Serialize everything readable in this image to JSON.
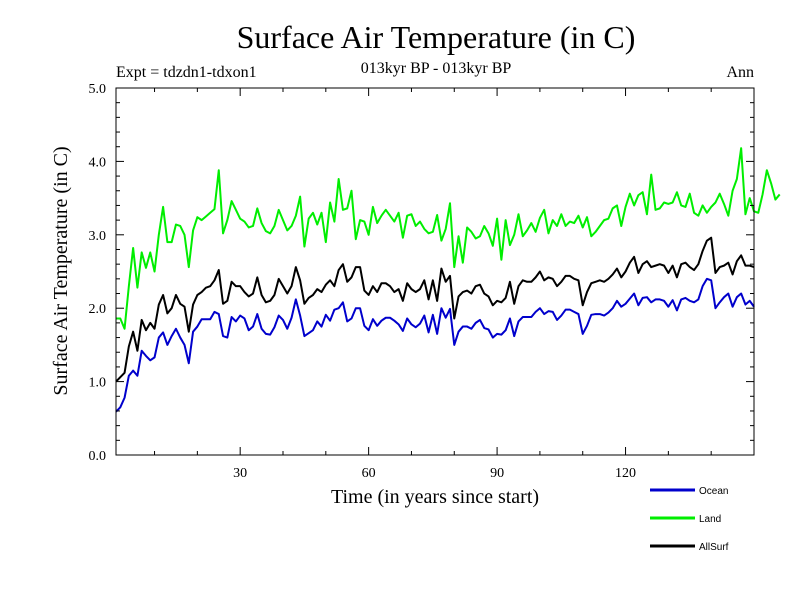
{
  "chart_data": {
    "type": "line",
    "title": "Surface Air Temperature (in C)",
    "subtitle": "013kyr BP - 013kyr BP",
    "experiment_label": "Expt = tdzdn1-tdxon1",
    "period_label": "Ann",
    "xlabel": "Time (in years since start)",
    "ylabel": "Surface Air Temperature (in C)",
    "xlim": [
      1,
      150
    ],
    "ylim": [
      0,
      5
    ],
    "x_ticks": [
      30,
      60,
      90,
      120
    ],
    "x_tick_labels": [
      "30",
      "60",
      "90",
      "120"
    ],
    "y_ticks": [
      0,
      1,
      2,
      3,
      4,
      5
    ],
    "y_tick_labels": [
      "0.0",
      "1.0",
      "2.0",
      "3.0",
      "4.0",
      "5.0"
    ],
    "legend_position": "bottom-right",
    "series": [
      {
        "name": "Ocean",
        "color": "#0000cc",
        "values": [
          0.59,
          0.65,
          0.78,
          1.08,
          1.15,
          1.08,
          1.42,
          1.35,
          1.29,
          1.33,
          1.6,
          1.67,
          1.5,
          1.62,
          1.72,
          1.6,
          1.5,
          1.25,
          1.68,
          1.75,
          1.85,
          1.85,
          1.85,
          1.95,
          1.92,
          1.62,
          1.6,
          1.88,
          1.82,
          1.9,
          1.86,
          1.7,
          1.75,
          1.92,
          1.72,
          1.65,
          1.64,
          1.74,
          1.9,
          1.84,
          1.72,
          1.87,
          2.12,
          1.9,
          1.62,
          1.66,
          1.7,
          1.82,
          1.75,
          1.91,
          1.83,
          1.98,
          2.0,
          2.08,
          1.82,
          1.86,
          2.0,
          2.0,
          1.76,
          1.7,
          1.85,
          1.76,
          1.83,
          1.87,
          1.87,
          1.83,
          1.78,
          1.69,
          1.86,
          1.78,
          1.74,
          1.79,
          1.9,
          1.67,
          1.91,
          1.65,
          2.0,
          1.87,
          1.99,
          1.5,
          1.68,
          1.75,
          1.75,
          1.72,
          1.8,
          1.84,
          1.73,
          1.71,
          1.6,
          1.65,
          1.64,
          1.7,
          1.86,
          1.62,
          1.82,
          1.88,
          1.88,
          1.88,
          1.95,
          2.0,
          1.92,
          1.96,
          1.95,
          1.84,
          1.9,
          1.98,
          1.98,
          1.95,
          1.92,
          1.65,
          1.76,
          1.91,
          1.92,
          1.92,
          1.9,
          1.94,
          2.0,
          2.1,
          2.02,
          2.06,
          2.13,
          2.2,
          2.04,
          2.14,
          2.15,
          2.08,
          2.12,
          2.12,
          2.1,
          2.02,
          2.11,
          1.97,
          2.12,
          2.14,
          2.1,
          2.08,
          2.12,
          2.3,
          2.4,
          2.38,
          2.0,
          2.08,
          2.15,
          2.2,
          2.02,
          2.15,
          2.2,
          2.05,
          2.1,
          2.02
        ]
      },
      {
        "name": "Land",
        "color": "#00ee00",
        "values": [
          1.86,
          1.86,
          1.72,
          2.3,
          2.82,
          2.28,
          2.76,
          2.55,
          2.76,
          2.5,
          3.0,
          3.38,
          2.9,
          2.9,
          3.14,
          3.12,
          3.0,
          2.56,
          3.06,
          3.24,
          3.2,
          3.25,
          3.3,
          3.35,
          3.88,
          3.02,
          3.2,
          3.46,
          3.34,
          3.22,
          3.18,
          3.1,
          3.12,
          3.36,
          3.16,
          3.05,
          3.02,
          3.12,
          3.34,
          3.2,
          3.06,
          3.12,
          3.26,
          3.52,
          2.84,
          3.22,
          3.3,
          3.14,
          3.3,
          2.9,
          3.44,
          3.18,
          3.76,
          3.34,
          3.36,
          3.6,
          2.94,
          3.2,
          3.18,
          3.0,
          3.38,
          3.16,
          3.26,
          3.34,
          3.26,
          3.18,
          3.3,
          2.96,
          3.26,
          3.28,
          3.12,
          3.18,
          3.08,
          3.02,
          3.04,
          3.27,
          2.92,
          3.08,
          3.43,
          2.56,
          2.98,
          2.62,
          3.1,
          3.04,
          2.95,
          2.98,
          3.12,
          3.02,
          2.85,
          3.22,
          2.66,
          3.2,
          2.86,
          3.0,
          3.28,
          2.98,
          3.06,
          3.16,
          3.04,
          3.23,
          3.34,
          3.02,
          3.2,
          3.12,
          3.28,
          3.12,
          3.18,
          3.16,
          3.26,
          3.1,
          3.24,
          2.98,
          3.04,
          3.12,
          3.2,
          3.22,
          3.36,
          3.4,
          3.12,
          3.38,
          3.56,
          3.4,
          3.54,
          3.58,
          3.28,
          3.82,
          3.34,
          3.36,
          3.44,
          3.42,
          3.44,
          3.58,
          3.4,
          3.38,
          3.56,
          3.3,
          3.26,
          3.4,
          3.3,
          3.38,
          3.44,
          3.56,
          3.42,
          3.26,
          3.6,
          3.76,
          4.18,
          3.28,
          3.5,
          3.32,
          3.3,
          3.55,
          3.88,
          3.7,
          3.48,
          3.55
        ]
      },
      {
        "name": "AllSurf",
        "color": "#000000",
        "values": [
          1.0,
          1.06,
          1.12,
          1.48,
          1.68,
          1.42,
          1.84,
          1.7,
          1.8,
          1.72,
          2.05,
          2.18,
          1.93,
          2.0,
          2.18,
          2.06,
          2.02,
          1.68,
          2.05,
          2.18,
          2.22,
          2.28,
          2.3,
          2.38,
          2.52,
          2.06,
          2.1,
          2.36,
          2.3,
          2.3,
          2.22,
          2.16,
          2.2,
          2.42,
          2.18,
          2.08,
          2.1,
          2.18,
          2.4,
          2.3,
          2.2,
          2.3,
          2.56,
          2.38,
          2.06,
          2.14,
          2.18,
          2.26,
          2.22,
          2.32,
          2.38,
          2.3,
          2.52,
          2.6,
          2.36,
          2.42,
          2.56,
          2.56,
          2.24,
          2.18,
          2.3,
          2.22,
          2.34,
          2.34,
          2.3,
          2.22,
          2.26,
          2.1,
          2.34,
          2.26,
          2.22,
          2.26,
          2.38,
          2.12,
          2.38,
          2.1,
          2.54,
          2.36,
          2.44,
          1.86,
          2.16,
          2.22,
          2.24,
          2.2,
          2.3,
          2.32,
          2.2,
          2.16,
          2.04,
          2.1,
          2.08,
          2.14,
          2.36,
          2.06,
          2.3,
          2.38,
          2.36,
          2.36,
          2.42,
          2.5,
          2.38,
          2.42,
          2.4,
          2.3,
          2.36,
          2.44,
          2.44,
          2.4,
          2.38,
          2.04,
          2.22,
          2.34,
          2.36,
          2.38,
          2.36,
          2.4,
          2.46,
          2.54,
          2.42,
          2.5,
          2.62,
          2.7,
          2.48,
          2.6,
          2.64,
          2.56,
          2.58,
          2.6,
          2.58,
          2.48,
          2.58,
          2.42,
          2.6,
          2.62,
          2.56,
          2.52,
          2.6,
          2.78,
          2.92,
          2.96,
          2.48,
          2.56,
          2.58,
          2.62,
          2.46,
          2.64,
          2.72,
          2.58,
          2.58,
          2.56
        ]
      }
    ]
  }
}
